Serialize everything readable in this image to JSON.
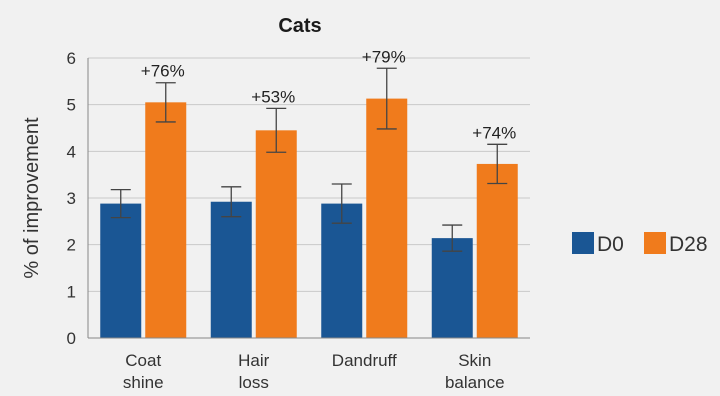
{
  "chart_data": {
    "type": "bar",
    "title": "Cats",
    "ylabel": "% of improvement",
    "xlabel": "",
    "ylim": [
      0,
      6
    ],
    "yticks": [
      0,
      1,
      2,
      3,
      4,
      5,
      6
    ],
    "grid": true,
    "legend_position": "right",
    "categories": [
      [
        "Coat",
        "shine"
      ],
      [
        "Hair",
        "loss"
      ],
      [
        "Dandruff"
      ],
      [
        "Skin",
        "balance"
      ]
    ],
    "series": [
      {
        "name": "D0",
        "color": "#1a5694",
        "values": [
          2.88,
          2.92,
          2.88,
          2.14
        ],
        "error": [
          0.3,
          0.32,
          0.42,
          0.28
        ]
      },
      {
        "name": "D28",
        "color": "#f07b1c",
        "values": [
          5.05,
          4.45,
          5.13,
          3.73
        ],
        "error": [
          0.42,
          0.47,
          0.65,
          0.42
        ]
      }
    ],
    "annotations": [
      "+76%",
      "+53%",
      "+79%",
      "+74%"
    ]
  }
}
